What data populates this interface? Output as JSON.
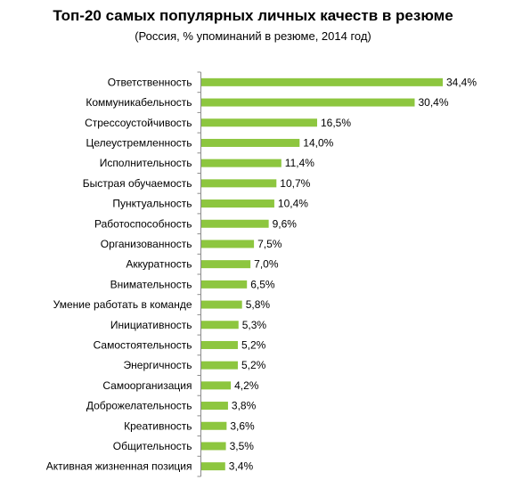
{
  "chart_data": {
    "type": "bar",
    "orientation": "horizontal",
    "title": "Топ-20 самых популярных личных качеств в резюме",
    "subtitle": "(Россия, % упоминаний в резюме, 2014 год)",
    "categories": [
      "Ответственность",
      "Коммуникабельность",
      "Стрессоустойчивость",
      "Целеустремленность",
      "Исполнительность",
      "Быстрая обучаемость",
      "Пунктуальность",
      "Работоспособность",
      "Организованность",
      "Аккуратность",
      "Внимательность",
      "Умение работать в команде",
      "Инициативность",
      "Самостоятельность",
      "Энергичность",
      "Самоорганизация",
      "Доброжелательность",
      "Креативность",
      "Общительность",
      "Активная жизненная позиция"
    ],
    "values": [
      34.4,
      30.4,
      16.5,
      14.0,
      11.4,
      10.7,
      10.4,
      9.6,
      7.5,
      7.0,
      6.5,
      5.8,
      5.3,
      5.2,
      5.2,
      4.2,
      3.8,
      3.6,
      3.5,
      3.4
    ],
    "value_labels": [
      "34,4%",
      "30,4%",
      "16,5%",
      "14,0%",
      "11,4%",
      "10,7%",
      "10,4%",
      "9,6%",
      "7,5%",
      "7,0%",
      "6,5%",
      "5,8%",
      "5,3%",
      "5,2%",
      "5,2%",
      "4,2%",
      "3,8%",
      "3,6%",
      "3,5%",
      "3,4%"
    ],
    "xlim": [
      0,
      34.4
    ],
    "grid": false,
    "legend": "none",
    "bar_color": "#8DC63F",
    "axis_color": "#8C8C8C"
  }
}
